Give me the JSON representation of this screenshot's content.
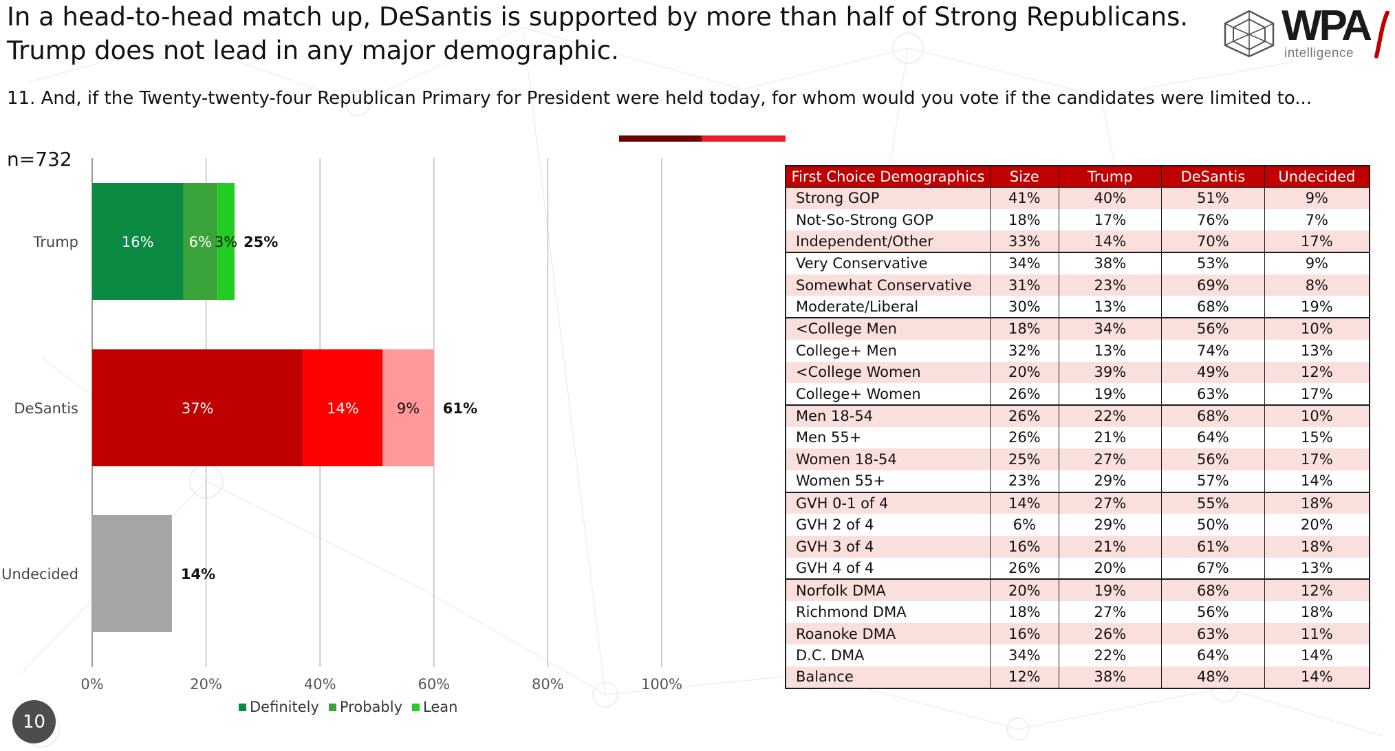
{
  "headline": {
    "line1": "In a head-to-head match up, DeSantis is supported by more than half of Strong Republicans.",
    "line2": "Trump does not lead in any major demographic."
  },
  "logo": {
    "word": "WPA",
    "sub": "intelligence"
  },
  "question": "11. And, if the Twenty-twenty-four Republican Primary for President were held today, for whom would you vote if the candidates were limited to...",
  "sample": "n=732",
  "page_number": "10",
  "colors": {
    "accent_dark": "#6b0000",
    "accent_red": "#ee1c25",
    "header_red": "#c00000",
    "row_pink": "#fae0dc"
  },
  "chart_data": {
    "type": "bar",
    "orientation": "horizontal",
    "stacked": true,
    "categories": [
      "Trump",
      "DeSantis",
      "Undecided"
    ],
    "series": [
      {
        "name": "Definitely",
        "values": [
          16,
          37,
          14
        ],
        "colors": [
          "#0a8a43",
          "#c00000",
          "#a6a6a6"
        ],
        "labels": [
          "16%",
          "37%",
          ""
        ]
      },
      {
        "name": "Probably",
        "values": [
          6,
          14,
          0
        ],
        "colors": [
          "#3aa33a",
          "#ff0000",
          "#a6a6a6"
        ],
        "labels": [
          "6%",
          "14%",
          ""
        ]
      },
      {
        "name": "Lean",
        "values": [
          3,
          9,
          0
        ],
        "colors": [
          "#22cc22",
          "#ff9999",
          "#a6a6a6"
        ],
        "labels": [
          "3%",
          "9%",
          ""
        ]
      }
    ],
    "totals": [
      "25%",
      "61%",
      "14%"
    ],
    "xlim": [
      0,
      100
    ],
    "x_ticks": [
      "0%",
      "20%",
      "40%",
      "60%",
      "80%",
      "100%"
    ],
    "grid": true,
    "legend_position": "bottom",
    "legend": [
      {
        "name": "Definitely",
        "color": "#0a8a43"
      },
      {
        "name": "Probably",
        "color": "#3aa33a"
      },
      {
        "name": "Lean",
        "color": "#22cc22"
      }
    ]
  },
  "table": {
    "headers": [
      "First Choice Demographics",
      "Size",
      "Trump",
      "DeSantis",
      "Undecided"
    ],
    "groups": [
      [
        [
          "Strong GOP",
          "41%",
          "40%",
          "51%",
          "9%"
        ],
        [
          "Not-So-Strong GOP",
          "18%",
          "17%",
          "76%",
          "7%"
        ],
        [
          "Independent/Other",
          "33%",
          "14%",
          "70%",
          "17%"
        ]
      ],
      [
        [
          "Very Conservative",
          "34%",
          "38%",
          "53%",
          "9%"
        ],
        [
          "Somewhat Conservative",
          "31%",
          "23%",
          "69%",
          "8%"
        ],
        [
          "Moderate/Liberal",
          "30%",
          "13%",
          "68%",
          "19%"
        ]
      ],
      [
        [
          "<College Men",
          "18%",
          "34%",
          "56%",
          "10%"
        ],
        [
          "College+ Men",
          "32%",
          "13%",
          "74%",
          "13%"
        ],
        [
          "<College Women",
          "20%",
          "39%",
          "49%",
          "12%"
        ],
        [
          "College+ Women",
          "26%",
          "19%",
          "63%",
          "17%"
        ]
      ],
      [
        [
          "Men 18-54",
          "26%",
          "22%",
          "68%",
          "10%"
        ],
        [
          "Men 55+",
          "26%",
          "21%",
          "64%",
          "15%"
        ],
        [
          "Women 18-54",
          "25%",
          "27%",
          "56%",
          "17%"
        ],
        [
          "Women 55+",
          "23%",
          "29%",
          "57%",
          "14%"
        ]
      ],
      [
        [
          "GVH 0-1 of 4",
          "14%",
          "27%",
          "55%",
          "18%"
        ],
        [
          "GVH 2 of 4",
          "6%",
          "29%",
          "50%",
          "20%"
        ],
        [
          "GVH 3 of 4",
          "16%",
          "21%",
          "61%",
          "18%"
        ],
        [
          "GVH 4 of 4",
          "26%",
          "20%",
          "67%",
          "13%"
        ]
      ],
      [
        [
          "Norfolk DMA",
          "20%",
          "19%",
          "68%",
          "12%"
        ],
        [
          "Richmond DMA",
          "18%",
          "27%",
          "56%",
          "18%"
        ],
        [
          "Roanoke DMA",
          "16%",
          "26%",
          "63%",
          "11%"
        ],
        [
          "D.C. DMA",
          "34%",
          "22%",
          "64%",
          "14%"
        ],
        [
          "Balance",
          "12%",
          "38%",
          "48%",
          "14%"
        ]
      ]
    ]
  }
}
